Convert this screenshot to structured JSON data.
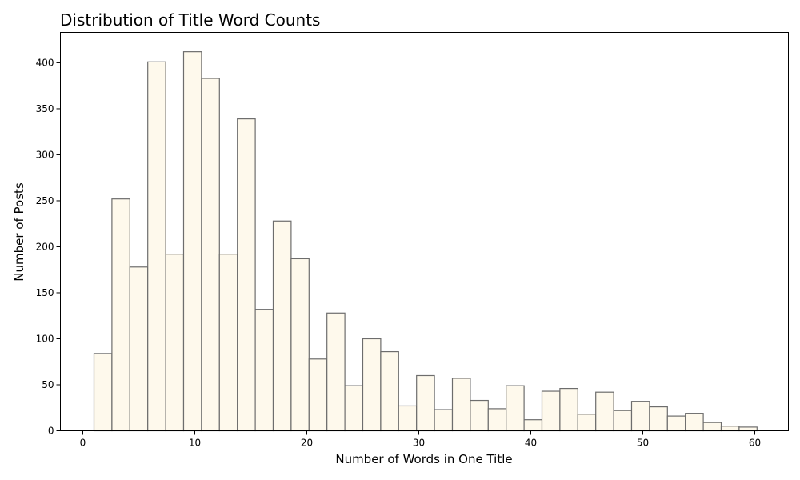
{
  "chart_data": {
    "type": "bar",
    "title": "Distribution of Title Word Counts",
    "xlabel": "Number of Words in One Title",
    "ylabel": "Number of Posts",
    "xlim": [
      -2,
      63
    ],
    "ylim": [
      0,
      433
    ],
    "grid": false,
    "x_ticks": [
      "0",
      "10",
      "20",
      "30",
      "40",
      "50",
      "60"
    ],
    "y_ticks": [
      "0",
      "50",
      "100",
      "150",
      "200",
      "250",
      "300",
      "350",
      "400"
    ],
    "bin_edges": [
      1,
      2.6,
      4.2,
      5.8,
      7.4,
      9,
      10.6,
      12.2,
      13.8,
      15.4,
      17,
      18.6,
      20.2,
      21.8,
      23.4,
      25,
      26.6,
      28.2,
      29.8,
      31.4,
      33,
      34.6,
      36.2,
      37.8,
      39.4,
      41,
      42.6,
      44.2,
      45.8,
      47.4,
      49,
      50.6,
      52.2,
      53.8,
      55.4,
      57,
      58.6,
      60.2
    ],
    "values": [
      84,
      252,
      178,
      401,
      192,
      412,
      383,
      192,
      339,
      132,
      228,
      187,
      78,
      128,
      49,
      100,
      86,
      27,
      60,
      23,
      57,
      33,
      24,
      49,
      12,
      43,
      46,
      18,
      42,
      22,
      32,
      26,
      16,
      19,
      9,
      5,
      4
    ]
  }
}
